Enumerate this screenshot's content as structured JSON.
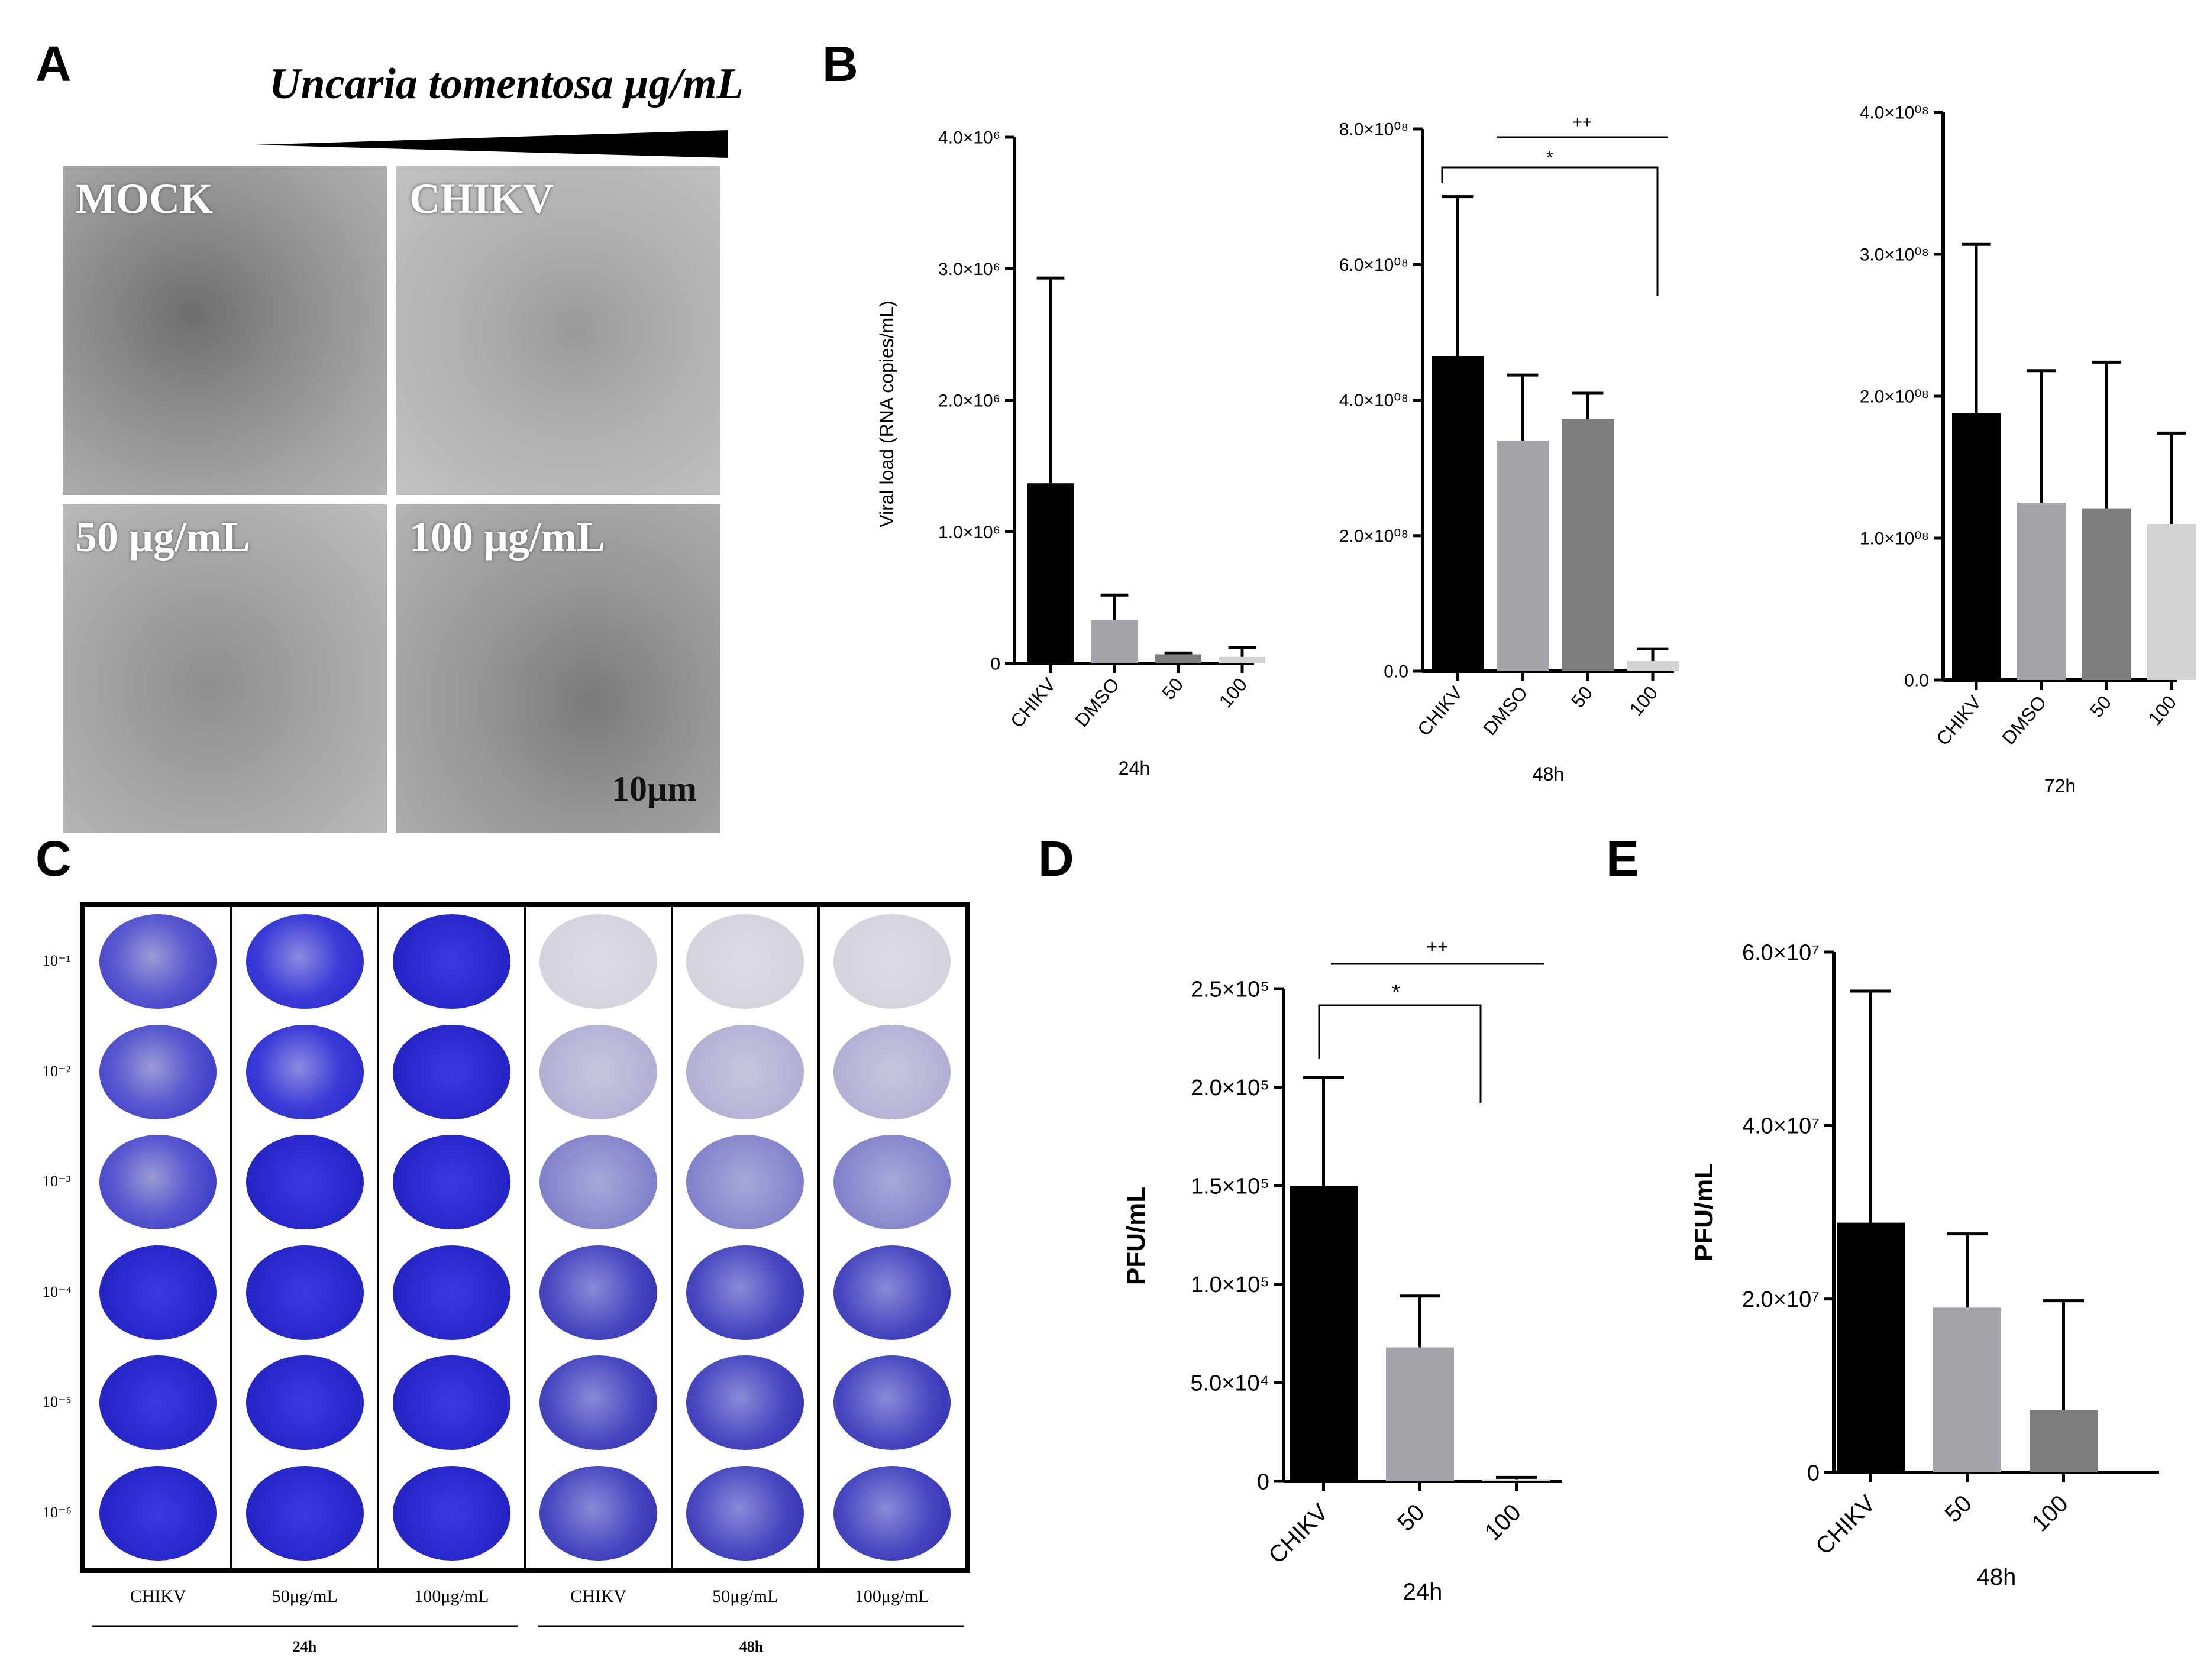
{
  "panels": {
    "a": {
      "letter": "A",
      "gradient_label": "Uncaria tomentosa μg/mL",
      "images": [
        {
          "label": "MOCK"
        },
        {
          "label": "CHIKV"
        },
        {
          "label": "50 μg/mL"
        },
        {
          "label": "100 μg/mL",
          "scale": "10μm"
        }
      ]
    },
    "b": {
      "letter": "B"
    },
    "c": {
      "letter": "C",
      "dilutions": [
        "10⁻¹",
        "10⁻²",
        "10⁻³",
        "10⁻⁴",
        "10⁻⁵",
        "10⁻⁶"
      ],
      "columns": [
        "CHIKV",
        "50μg/mL",
        "100μg/mL",
        "CHIKV",
        "50μg/mL",
        "100μg/mL"
      ],
      "times": [
        "24h",
        "48h"
      ]
    },
    "d": {
      "letter": "D"
    },
    "e": {
      "letter": "E"
    }
  },
  "chart_data": [
    {
      "id": "B-24h",
      "type": "bar",
      "categories": [
        "CHIKV",
        "DMSO",
        "50",
        "100"
      ],
      "values": [
        1370000,
        330000,
        70000,
        50000
      ],
      "errors": [
        1560000,
        190000,
        10000,
        70000
      ],
      "xlabel": "24h",
      "ylabel": "Viral load (RNA copies/mL)",
      "ylim": [
        0,
        4000000
      ],
      "yticks": [
        0,
        1000000,
        2000000,
        3000000,
        4000000
      ],
      "ytick_labels": [
        "0",
        "1.0×10⁶",
        "2.0×10⁶",
        "3.0×10⁶",
        "4.0×10⁶"
      ],
      "colors": [
        "#000000",
        "#a5a4ab",
        "#7e7e7e",
        "#d3d3d3"
      ]
    },
    {
      "id": "B-48h",
      "type": "bar",
      "categories": [
        "CHIKV",
        "DMSO",
        "50",
        "100"
      ],
      "values": [
        465000000,
        340000000,
        372000000,
        15000000
      ],
      "errors": [
        235000000,
        97000000,
        38000000,
        18000000
      ],
      "xlabel": "48h",
      "ylabel": "",
      "ylim": [
        0,
        800000000
      ],
      "yticks": [
        0,
        200000000,
        400000000,
        600000000,
        800000000
      ],
      "ytick_labels": [
        "0.0",
        "2.0×10⁰⁸",
        "4.0×10⁰⁸",
        "6.0×10⁰⁸",
        "8.0×10⁰⁸"
      ],
      "annotations": [
        "++",
        "*"
      ],
      "colors": [
        "#000000",
        "#a5a4ab",
        "#7e7e7e",
        "#d3d3d3"
      ]
    },
    {
      "id": "B-72h",
      "type": "bar",
      "categories": [
        "CHIKV",
        "DMSO",
        "50",
        "100"
      ],
      "values": [
        188000000,
        125000000,
        121000000,
        110000000
      ],
      "errors": [
        119000000,
        93000000,
        103000000,
        64000000
      ],
      "xlabel": "72h",
      "ylabel": "",
      "ylim": [
        0,
        400000000
      ],
      "yticks": [
        0,
        100000000,
        200000000,
        300000000,
        400000000
      ],
      "ytick_labels": [
        "0.0",
        "1.0×10⁰⁸",
        "2.0×10⁰⁸",
        "3.0×10⁰⁸",
        "4.0×10⁰⁸"
      ],
      "colors": [
        "#000000",
        "#a5a4ab",
        "#7e7e7e",
        "#d3d3d3"
      ]
    },
    {
      "id": "D",
      "type": "bar",
      "categories": [
        "CHIKV",
        "50",
        "100"
      ],
      "values": [
        150000,
        68000,
        1000
      ],
      "errors": [
        55000,
        26000,
        1000
      ],
      "xlabel": "24h",
      "ylabel": "PFU/mL",
      "ylim": [
        0,
        250000
      ],
      "yticks": [
        0,
        50000,
        100000,
        150000,
        200000,
        250000
      ],
      "ytick_labels": [
        "0",
        "5.0×10⁴",
        "1.0×10⁵",
        "1.5×10⁵",
        "2.0×10⁵",
        "2.5×10⁵"
      ],
      "annotations": [
        "++",
        "*"
      ],
      "colors": [
        "#000000",
        "#a5a4ab",
        "#d3d3d3"
      ]
    },
    {
      "id": "E",
      "type": "bar",
      "categories": [
        "CHIKV",
        "50",
        "100"
      ],
      "values": [
        28800000,
        19000000,
        7200000
      ],
      "errors": [
        26700000,
        8500000,
        12600000
      ],
      "xlabel": "48h",
      "ylabel": "PFU/mL",
      "ylim": [
        0,
        60000000
      ],
      "yticks": [
        0,
        20000000,
        40000000,
        60000000
      ],
      "ytick_labels": [
        "0",
        "2.0×10⁷",
        "4.0×10⁷",
        "6.0×10⁷"
      ],
      "colors": [
        "#000000",
        "#a5a4ab",
        "#7e7e7e"
      ]
    }
  ]
}
